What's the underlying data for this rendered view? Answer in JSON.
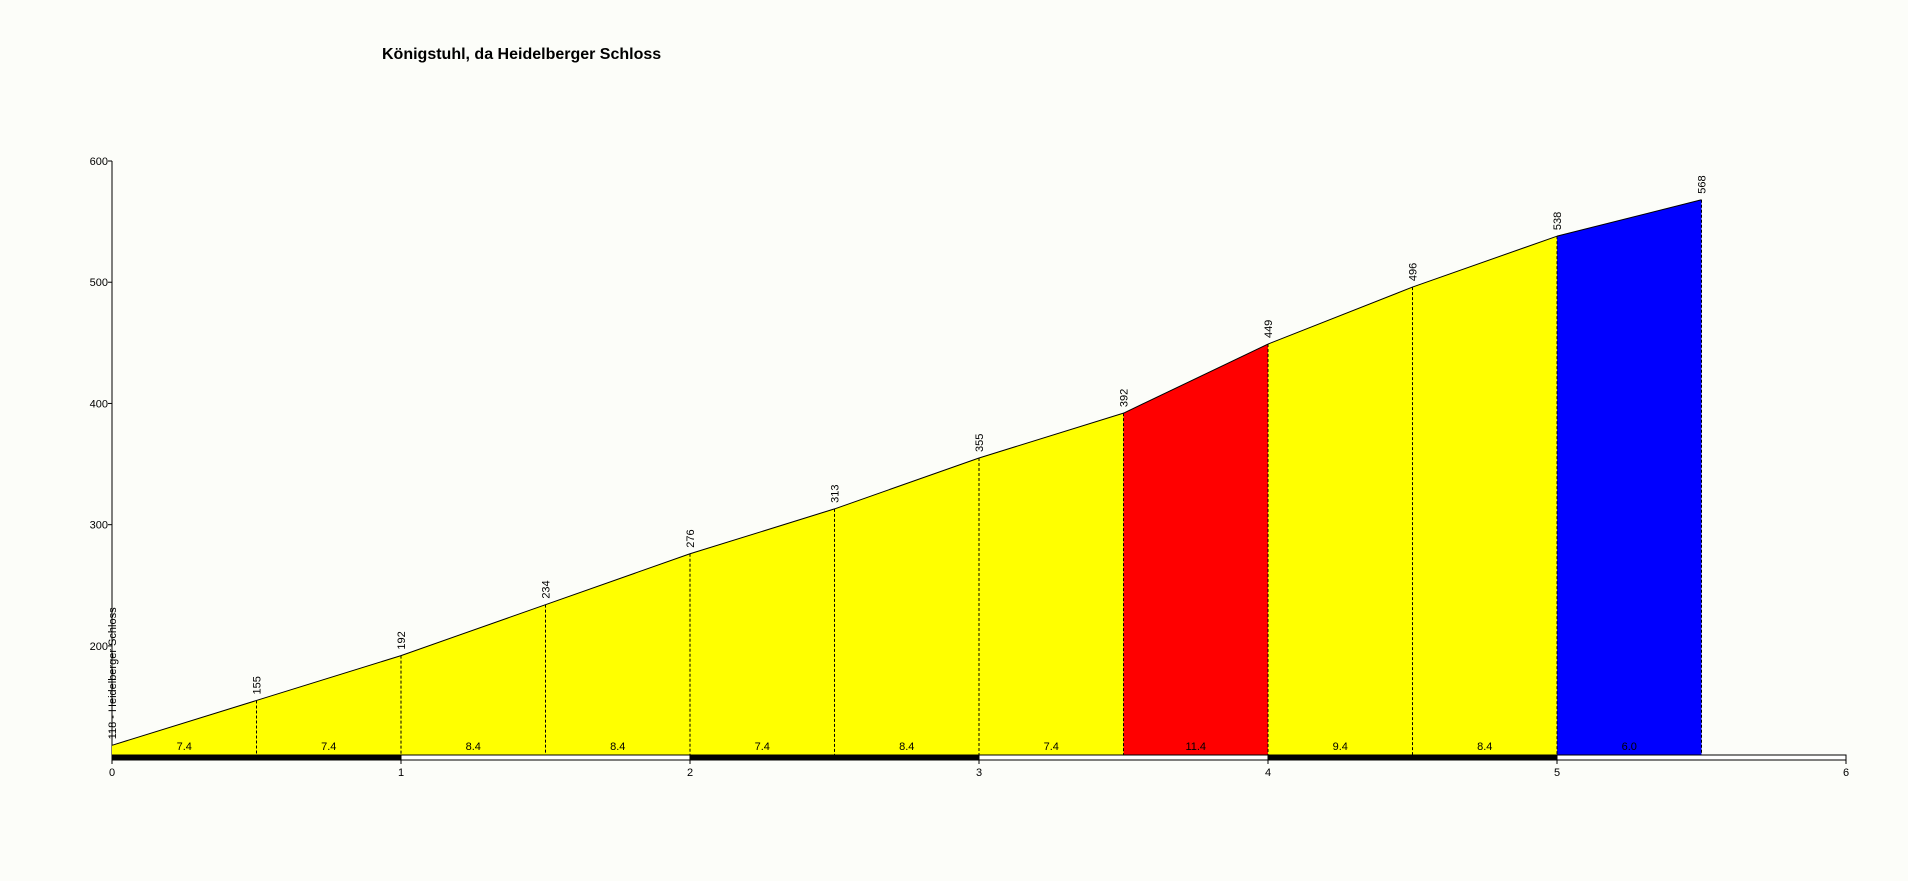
{
  "chart_data": {
    "type": "profile",
    "title": "Königstuhl, da Heidelberger Schloss",
    "x": [
      0,
      0.5,
      1,
      1.5,
      2,
      2.5,
      3,
      3.5,
      4,
      4.5,
      5,
      5.5
    ],
    "values": [
      118,
      155,
      192,
      234,
      276,
      313,
      355,
      392,
      449,
      496,
      538,
      568
    ],
    "value_labels": [
      "118 - Heidelberger Schloss",
      "155",
      "192",
      "234",
      "276",
      "313",
      "355",
      "392",
      "449",
      "496",
      "538",
      "568"
    ],
    "segments": {
      "values": [
        7.4,
        7.4,
        8.4,
        8.4,
        7.4,
        8.4,
        7.4,
        11.4,
        9.4,
        8.4,
        6
      ],
      "value_labels": [
        "7.4",
        "7.4",
        "8.4",
        "8.4",
        "7.4",
        "8.4",
        "7.4",
        "11.4",
        "9.4",
        "8.4",
        "6.0"
      ],
      "colors": [
        "#ffff00",
        "#ffff00",
        "#ffff00",
        "#ffff00",
        "#ffff00",
        "#ffff00",
        "#ffff00",
        "#ff0000",
        "#ffff00",
        "#ffff00",
        "#0000ff"
      ]
    },
    "xlim": [
      0,
      6
    ],
    "xticks": [
      0,
      1,
      2,
      3,
      4,
      5,
      6
    ],
    "ylim": [
      110,
      600
    ],
    "yticks": [
      200,
      300,
      400,
      500,
      600
    ]
  }
}
